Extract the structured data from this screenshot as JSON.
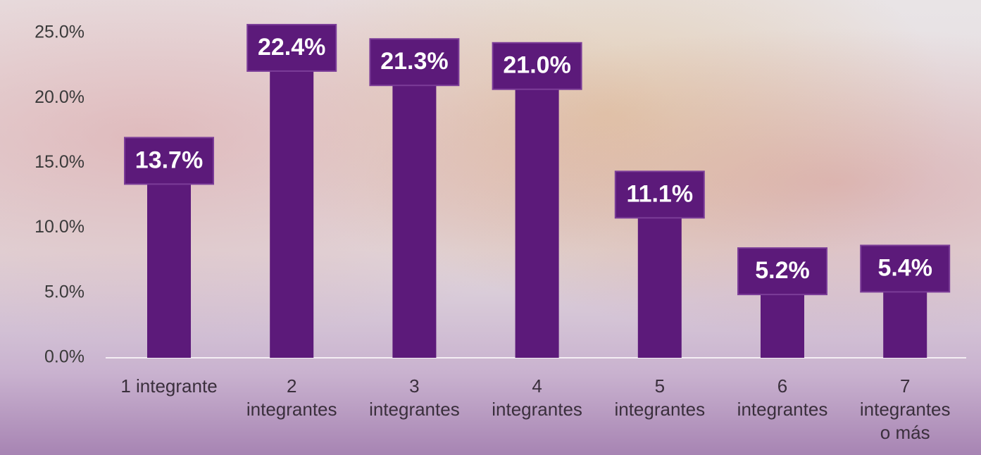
{
  "chart_data": {
    "type": "bar",
    "categories": [
      "1 integrante",
      "2 integrantes",
      "3 integrantes",
      "4 integrantes",
      "5 integrantes",
      "6 integrantes",
      "7 integrantes o más"
    ],
    "values": [
      13.7,
      22.4,
      21.3,
      21.0,
      11.1,
      5.2,
      5.4
    ],
    "value_labels": [
      "13.7%",
      "22.4%",
      "21.3%",
      "21.0%",
      "11.1%",
      "5.2%",
      "5.4%"
    ],
    "color": "#5c1a7a",
    "ylim": [
      0,
      25
    ],
    "yticks": [
      {
        "value": 0,
        "label": "0.0%"
      },
      {
        "value": 5,
        "label": "5.0%"
      },
      {
        "value": 10,
        "label": "10.0%"
      },
      {
        "value": 15,
        "label": "15.0%"
      },
      {
        "value": 20,
        "label": "20.0%"
      },
      {
        "value": 25,
        "label": "25.0%"
      }
    ]
  }
}
